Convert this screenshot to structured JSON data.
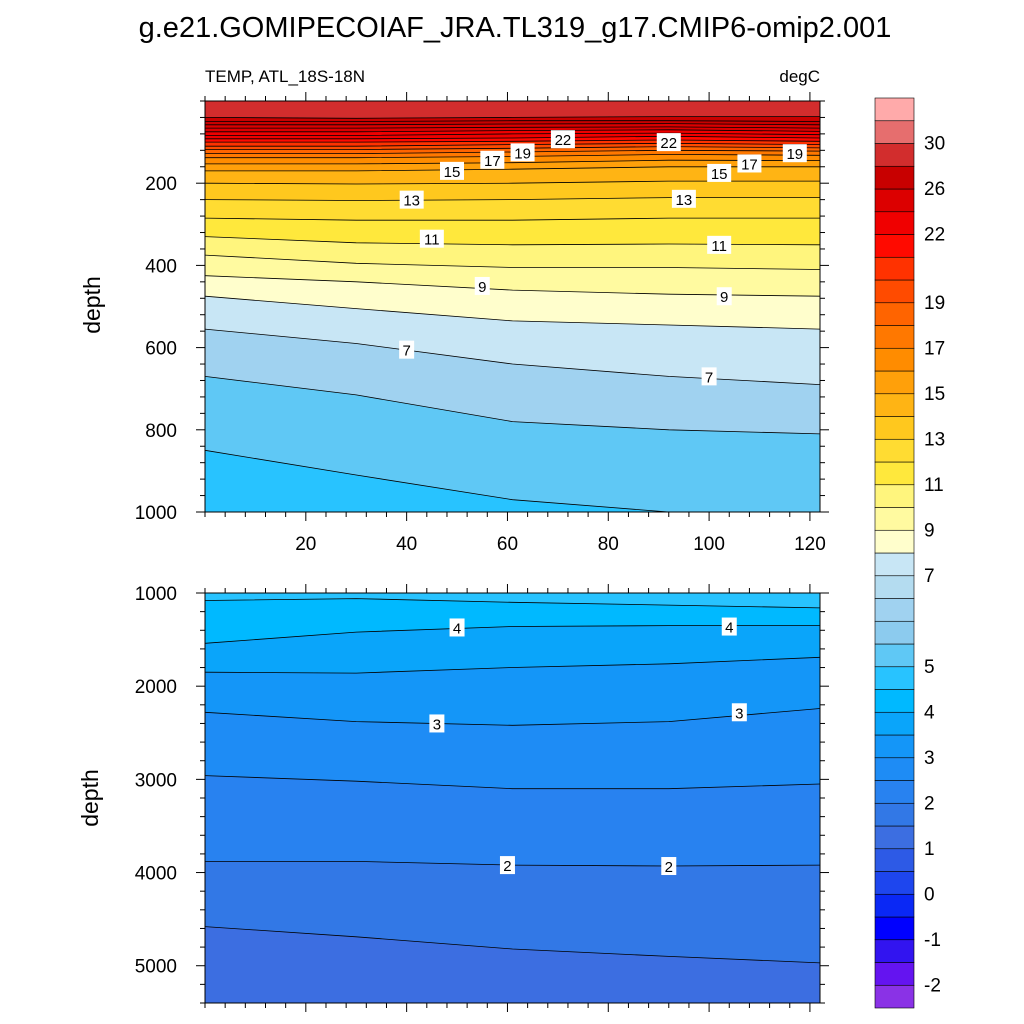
{
  "figure": {
    "title": "g.e21.GOMIPECOIAF_JRA.TL319_g17.CMIP6-omip2.001",
    "left_label": "TEMP, ATL_18S-18N",
    "right_label": "degC"
  },
  "chart_data": [
    {
      "type": "contour",
      "name": "upper",
      "xlabel": "",
      "ylabel": "depth",
      "x_range": [
        0,
        122
      ],
      "x_ticks": [
        20,
        40,
        60,
        80,
        100,
        120
      ],
      "y_range": [
        0,
        1000
      ],
      "y_reversed": true,
      "y_ticks": [
        200,
        400,
        600,
        800,
        1000
      ],
      "contour_lines": [
        {
          "value": 28,
          "depth": [
            40,
            42,
            40,
            38,
            38
          ]
        },
        {
          "value": 27,
          "depth": [
            50,
            50,
            48,
            48,
            50
          ]
        },
        {
          "value": 26,
          "depth": [
            58,
            58,
            56,
            55,
            58
          ]
        },
        {
          "value": 25,
          "depth": [
            66,
            66,
            64,
            63,
            66
          ]
        },
        {
          "value": 24,
          "depth": [
            75,
            75,
            72,
            70,
            74
          ]
        },
        {
          "value": 23,
          "depth": [
            84,
            84,
            80,
            78,
            82
          ]
        },
        {
          "value": 22,
          "depth": [
            92,
            92,
            90,
            86,
            90
          ]
        },
        {
          "value": 21,
          "depth": [
            100,
            100,
            98,
            95,
            98
          ]
        },
        {
          "value": 20,
          "depth": [
            110,
            110,
            106,
            103,
            106
          ]
        },
        {
          "value": 19,
          "depth": [
            118,
            118,
            115,
            111,
            114
          ]
        },
        {
          "value": 18,
          "depth": [
            128,
            128,
            124,
            120,
            122
          ]
        },
        {
          "value": 17,
          "depth": [
            138,
            138,
            135,
            130,
            132
          ]
        },
        {
          "value": 16,
          "depth": [
            153,
            153,
            150,
            144,
            145
          ]
        },
        {
          "value": 15,
          "depth": [
            170,
            170,
            166,
            160,
            160
          ]
        },
        {
          "value": 14,
          "depth": [
            200,
            202,
            200,
            195,
            195
          ]
        },
        {
          "value": 13,
          "depth": [
            240,
            242,
            240,
            235,
            235
          ]
        },
        {
          "value": 12,
          "depth": [
            285,
            290,
            290,
            285,
            285
          ]
        },
        {
          "value": 11,
          "depth": [
            330,
            345,
            350,
            348,
            350
          ]
        },
        {
          "value": 10,
          "depth": [
            375,
            395,
            405,
            405,
            410
          ]
        },
        {
          "value": 9,
          "depth": [
            425,
            440,
            460,
            470,
            475
          ]
        },
        {
          "value": 8,
          "depth": [
            475,
            505,
            535,
            545,
            555
          ]
        },
        {
          "value": 7,
          "depth": [
            555,
            590,
            640,
            670,
            690
          ]
        },
        {
          "value": 6,
          "depth": [
            670,
            715,
            780,
            800,
            810
          ]
        },
        {
          "value": 5,
          "depth": [
            850,
            910,
            970,
            1000,
            1000
          ]
        }
      ],
      "labels": [
        {
          "text": "22",
          "x": 71,
          "depth": 93
        },
        {
          "text": "22",
          "x": 92,
          "depth": 100
        },
        {
          "text": "19",
          "x": 63,
          "depth": 125
        },
        {
          "text": "19",
          "x": 117,
          "depth": 127
        },
        {
          "text": "17",
          "x": 57,
          "depth": 143
        },
        {
          "text": "17",
          "x": 108,
          "depth": 152
        },
        {
          "text": "15",
          "x": 49,
          "depth": 170
        },
        {
          "text": "15",
          "x": 102,
          "depth": 175
        },
        {
          "text": "13",
          "x": 41,
          "depth": 240
        },
        {
          "text": "13",
          "x": 95,
          "depth": 238
        },
        {
          "text": "11",
          "x": 45,
          "depth": 335
        },
        {
          "text": "11",
          "x": 102,
          "depth": 350
        },
        {
          "text": "9",
          "x": 55,
          "depth": 450
        },
        {
          "text": "9",
          "x": 103,
          "depth": 475
        },
        {
          "text": "7",
          "x": 40,
          "depth": 605
        },
        {
          "text": "7",
          "x": 100,
          "depth": 670
        }
      ]
    },
    {
      "type": "contour",
      "name": "lower",
      "xlabel": "",
      "ylabel": "depth",
      "x_range": [
        0,
        122
      ],
      "x_ticks": [
        20,
        40,
        60,
        80,
        100,
        120
      ],
      "y_range": [
        1000,
        5400
      ],
      "y_reversed": true,
      "y_ticks": [
        1000,
        2000,
        3000,
        4000,
        5000
      ],
      "contour_lines": [
        {
          "value": 4.5,
          "depth": [
            1080,
            1060,
            1100,
            1130,
            1160
          ]
        },
        {
          "value": 4,
          "depth": [
            1540,
            1420,
            1360,
            1350,
            1350
          ]
        },
        {
          "value": 3.5,
          "depth": [
            1850,
            1860,
            1800,
            1760,
            1690
          ]
        },
        {
          "value": 3,
          "depth": [
            2280,
            2380,
            2420,
            2380,
            2240
          ]
        },
        {
          "value": 2.5,
          "depth": [
            2960,
            3020,
            3100,
            3100,
            3050
          ]
        },
        {
          "value": 2,
          "depth": [
            3880,
            3880,
            3920,
            3930,
            3920
          ]
        },
        {
          "value": 1.5,
          "depth": [
            4580,
            4690,
            4820,
            4900,
            4970
          ]
        }
      ],
      "labels": [
        {
          "text": "4",
          "x": 50,
          "depth": 1370
        },
        {
          "text": "4",
          "x": 104,
          "depth": 1360
        },
        {
          "text": "3",
          "x": 46,
          "depth": 2400
        },
        {
          "text": "3",
          "x": 106,
          "depth": 2280
        },
        {
          "text": "2",
          "x": 60,
          "depth": 3920
        },
        {
          "text": "2",
          "x": 92,
          "depth": 3930
        }
      ]
    },
    {
      "type": "colorbar",
      "name": "legend",
      "boundaries": [
        -2.5,
        -2,
        -1.5,
        -1,
        -0.5,
        0,
        0.5,
        1,
        1.5,
        2,
        2.5,
        3,
        3.5,
        4,
        4.5,
        5,
        5.5,
        6,
        6.5,
        7,
        8,
        9,
        10,
        11,
        12,
        13,
        14,
        15,
        16,
        17,
        18,
        19,
        20,
        21,
        22,
        24,
        26,
        28,
        30,
        32,
        34
      ],
      "colors": [
        "#8a32e6",
        "#6414f0",
        "#3214f0",
        "#0000ff",
        "#0a28f5",
        "#1e46ee",
        "#2d5ae6",
        "#3c6ee1",
        "#3278e6",
        "#2882f0",
        "#1e8cf5",
        "#1496f8",
        "#0aa5fa",
        "#00b9ff",
        "#28c3ff",
        "#5fc8f5",
        "#8ccbee",
        "#a0d2f0",
        "#b4dcf0",
        "#c8e6f5",
        "#fffecc",
        "#fffaa0",
        "#fff57d",
        "#ffe83c",
        "#ffdc32",
        "#ffc81e",
        "#ffb414",
        "#ffa00a",
        "#ff8c00",
        "#ff7800",
        "#ff6400",
        "#ff4b00",
        "#ff3200",
        "#ff0a00",
        "#f00000",
        "#dc0000",
        "#c80000",
        "#d22d2d",
        "#e66e6e",
        "#ffaaaa"
      ],
      "tick_labels": [
        "-2",
        "-1",
        "0",
        "1",
        "2",
        "3",
        "4",
        "5",
        "7",
        "9",
        "11",
        "13",
        "15",
        "17",
        "19",
        "22",
        "26",
        "30"
      ]
    }
  ]
}
